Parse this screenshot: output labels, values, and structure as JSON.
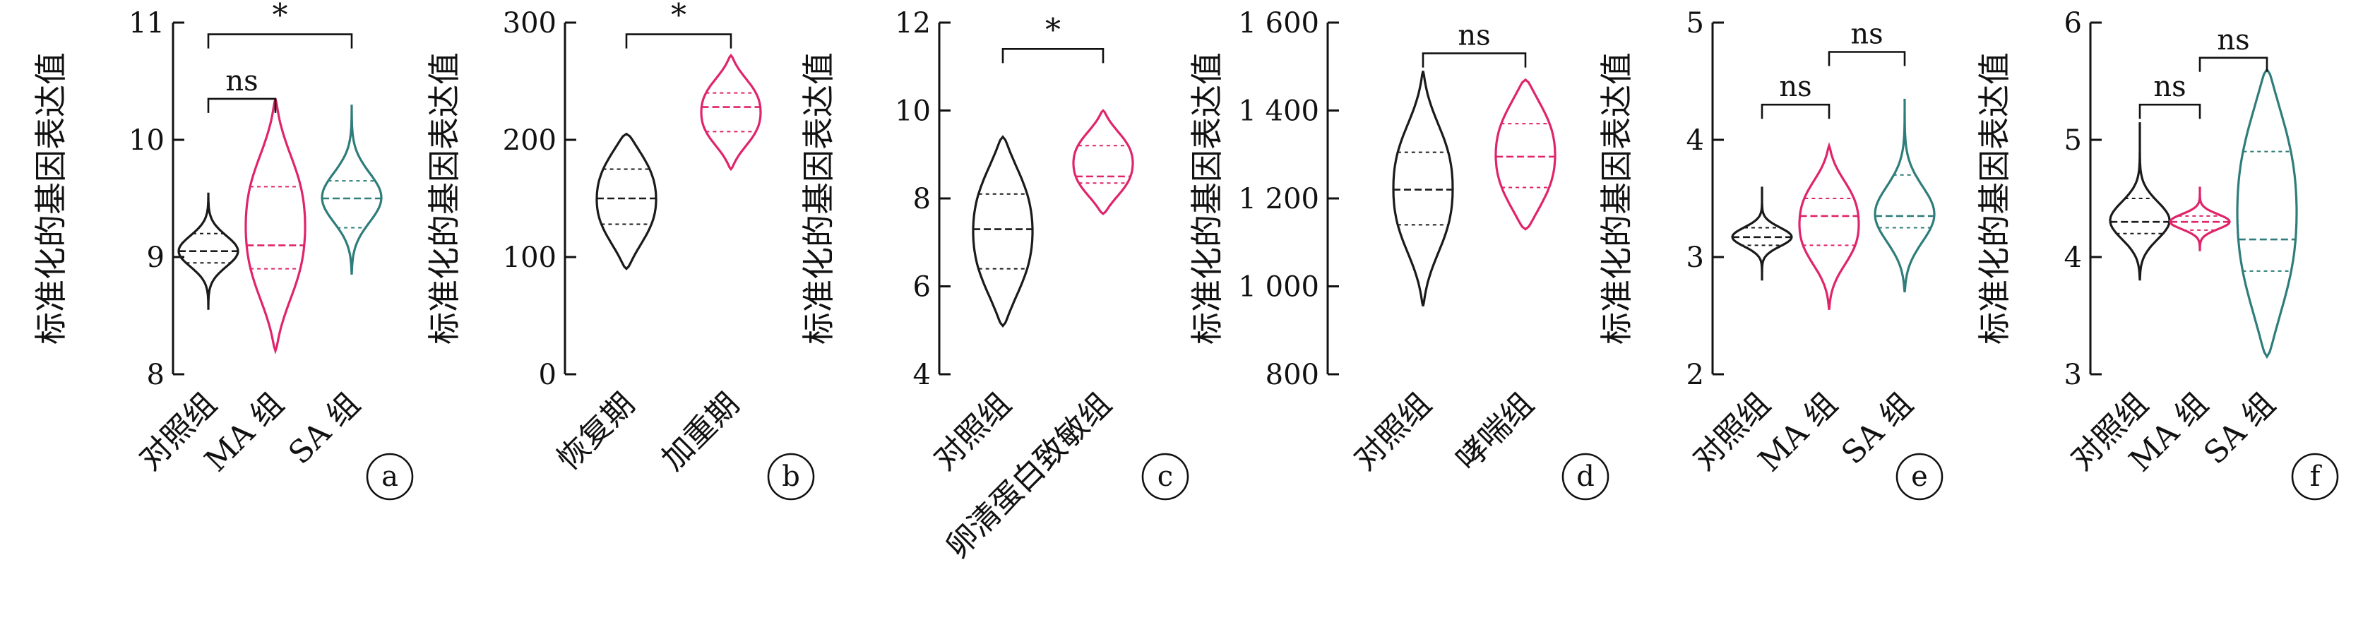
{
  "colors": {
    "black": "#1a1a1a",
    "pink": "#e0246a",
    "teal": "#2f7d7a"
  },
  "chart_data": [
    {
      "panel": "a",
      "type": "violin",
      "ylabel": "标准化的基因表达值",
      "ylim": [
        8,
        11
      ],
      "yticks": [
        "8",
        "9",
        "10",
        "11"
      ],
      "categories": [
        "对照组",
        "MA 组",
        "SA 组"
      ],
      "groups": [
        {
          "label": "对照组",
          "color": "black",
          "min": 8.55,
          "max": 9.55,
          "median": 9.05,
          "q1": 8.95,
          "q3": 9.2
        },
        {
          "label": "MA 组",
          "color": "pink",
          "min": 8.2,
          "max": 10.35,
          "median": 9.1,
          "q1": 8.9,
          "q3": 9.6
        },
        {
          "label": "SA 组",
          "color": "teal",
          "min": 8.85,
          "max": 10.3,
          "median": 9.5,
          "q1": 9.25,
          "q3": 9.65
        }
      ],
      "annotations": [
        {
          "from": 0,
          "to": 1,
          "text": "ns",
          "y": 10.35
        },
        {
          "from": 0,
          "to": 2,
          "text": "*",
          "y": 10.9
        }
      ]
    },
    {
      "panel": "b",
      "type": "violin",
      "ylabel": "标准化的基因表达值",
      "ylim": [
        0,
        300
      ],
      "yticks": [
        "0",
        "100",
        "200",
        "300"
      ],
      "categories": [
        "恢复期",
        "加重期"
      ],
      "groups": [
        {
          "label": "恢复期",
          "color": "black",
          "min": 90,
          "max": 205,
          "median": 150,
          "q1": 128,
          "q3": 175
        },
        {
          "label": "加重期",
          "color": "pink",
          "min": 175,
          "max": 272,
          "median": 228,
          "q1": 207,
          "q3": 240
        }
      ],
      "annotations": [
        {
          "from": 0,
          "to": 1,
          "text": "*",
          "y": 290
        }
      ]
    },
    {
      "panel": "c",
      "type": "violin",
      "ylabel": "标准化的基因表达值",
      "ylim": [
        4,
        12
      ],
      "yticks": [
        "4",
        "6",
        "8",
        "10",
        "12"
      ],
      "categories": [
        "对照组",
        "卵清蛋白致敏组"
      ],
      "groups": [
        {
          "label": "对照组",
          "color": "black",
          "min": 5.1,
          "max": 9.4,
          "median": 7.3,
          "q1": 6.4,
          "q3": 8.1
        },
        {
          "label": "卵清蛋白致敏组",
          "color": "pink",
          "min": 7.65,
          "max": 10.0,
          "median": 8.5,
          "q1": 8.35,
          "q3": 9.2
        }
      ],
      "annotations": [
        {
          "from": 0,
          "to": 1,
          "text": "*",
          "y": 11.4
        }
      ]
    },
    {
      "panel": "d",
      "type": "violin",
      "ylabel": "标准化的基因表达值",
      "ylim": [
        800,
        1600
      ],
      "yticks": [
        "800",
        "1 000",
        "1 200",
        "1 400",
        "1 600"
      ],
      "categories": [
        "对照组",
        "哮喘组"
      ],
      "groups": [
        {
          "label": "对照组",
          "color": "black",
          "min": 955,
          "max": 1490,
          "median": 1220,
          "q1": 1140,
          "q3": 1305
        },
        {
          "label": "哮喘组",
          "color": "pink",
          "min": 1130,
          "max": 1470,
          "median": 1295,
          "q1": 1225,
          "q3": 1370
        }
      ],
      "annotations": [
        {
          "from": 0,
          "to": 1,
          "text": "ns",
          "y": 1530
        }
      ]
    },
    {
      "panel": "e",
      "type": "violin",
      "ylabel": "标准化的基因表达值",
      "ylim": [
        2,
        5
      ],
      "yticks": [
        "2",
        "3",
        "4",
        "5"
      ],
      "categories": [
        "对照组",
        "MA 组",
        "SA 组"
      ],
      "groups": [
        {
          "label": "对照组",
          "color": "black",
          "min": 2.8,
          "max": 3.6,
          "median": 3.17,
          "q1": 3.1,
          "q3": 3.25
        },
        {
          "label": "MA 组",
          "color": "pink",
          "min": 2.55,
          "max": 3.95,
          "median": 3.35,
          "q1": 3.1,
          "q3": 3.5
        },
        {
          "label": "SA 组",
          "color": "teal",
          "min": 2.7,
          "max": 4.35,
          "median": 3.35,
          "q1": 3.25,
          "q3": 3.7
        }
      ],
      "annotations": [
        {
          "from": 0,
          "to": 1,
          "text": "ns",
          "y": 4.3
        },
        {
          "from": 1,
          "to": 2,
          "text": "ns",
          "y": 4.75
        }
      ]
    },
    {
      "panel": "f",
      "type": "violin",
      "ylabel": "标准化的基因表达值",
      "ylim": [
        3,
        6
      ],
      "yticks": [
        "3",
        "4",
        "5",
        "6"
      ],
      "categories": [
        "对照组",
        "MA 组",
        "SA 组"
      ],
      "groups": [
        {
          "label": "对照组",
          "color": "black",
          "min": 3.8,
          "max": 5.15,
          "median": 4.3,
          "q1": 4.2,
          "q3": 4.5
        },
        {
          "label": "MA 组",
          "color": "pink",
          "min": 4.05,
          "max": 4.6,
          "median": 4.3,
          "q1": 4.23,
          "q3": 4.35
        },
        {
          "label": "SA 组",
          "color": "teal",
          "min": 3.15,
          "max": 5.6,
          "median": 4.15,
          "q1": 3.88,
          "q3": 4.9
        }
      ],
      "annotations": [
        {
          "from": 0,
          "to": 1,
          "text": "ns",
          "y": 5.3
        },
        {
          "from": 1,
          "to": 2,
          "text": "ns",
          "y": 5.7
        }
      ]
    }
  ]
}
